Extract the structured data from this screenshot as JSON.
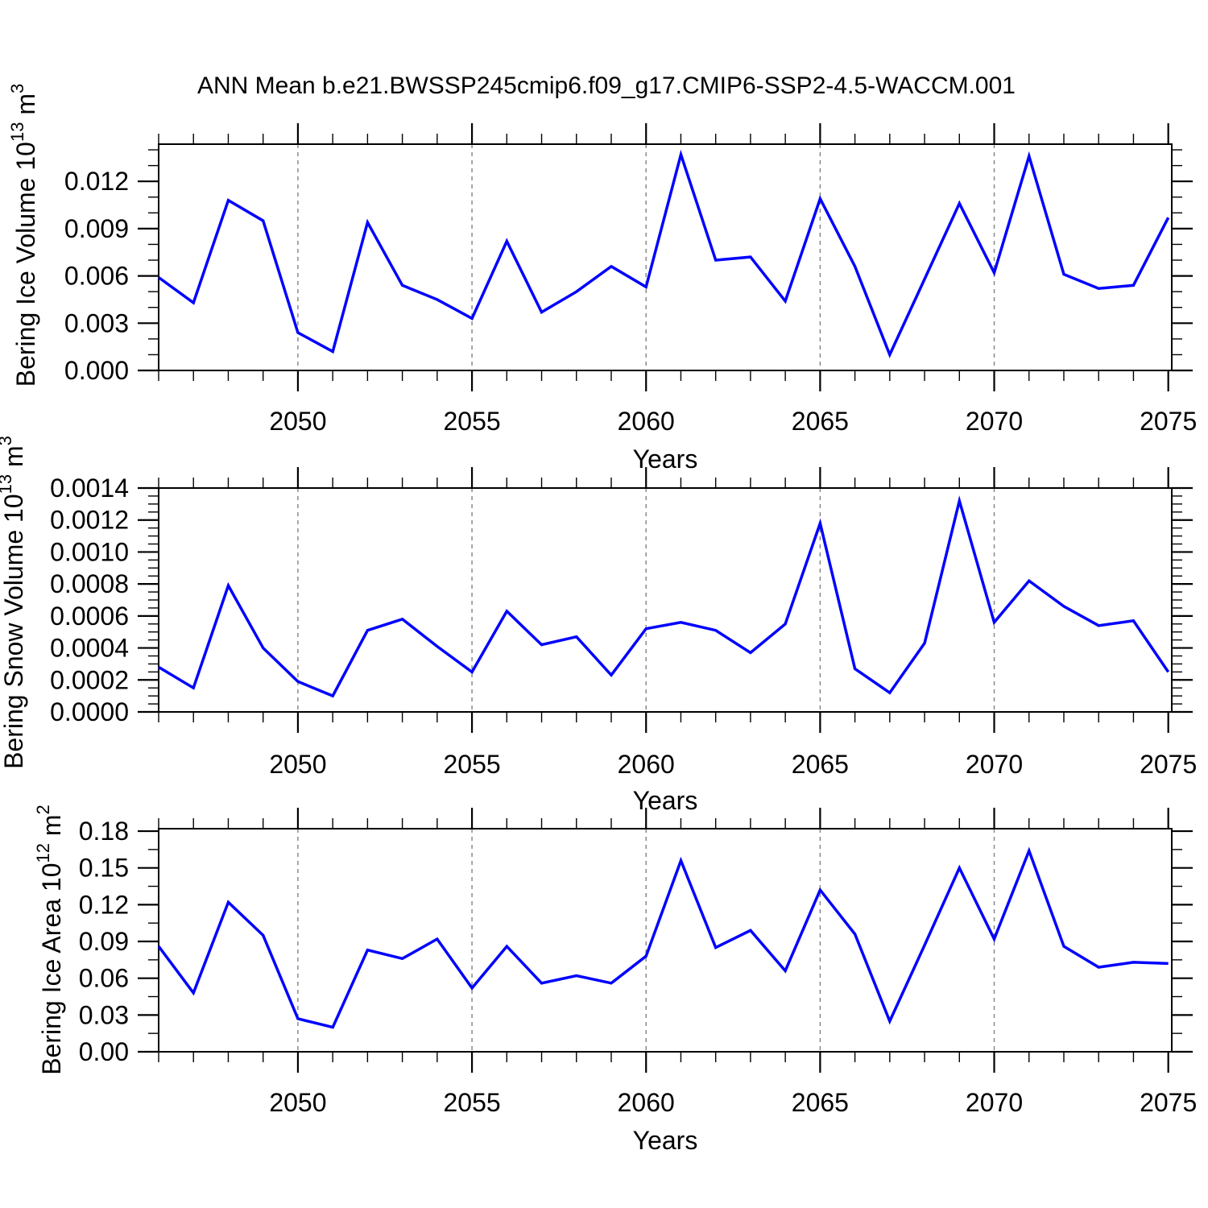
{
  "title": "ANN Mean b.e21.BWSSP245cmip6.f09_g17.CMIP6-SSP2-4.5-WACCM.001",
  "line_color": "#0000ff",
  "gridline_color": "#828282",
  "x_axis": {
    "xlabel": "Years",
    "xlim": [
      2046,
      2075.1
    ],
    "xticks": [
      2050,
      2055,
      2060,
      2065,
      2070,
      2075
    ],
    "x_minor_step": 1,
    "grid_years": [
      2050,
      2055,
      2060,
      2065,
      2070
    ]
  },
  "chart_data": [
    {
      "id": "bering-ice-volume",
      "type": "line",
      "ylabel": "Bering Ice Volume 10^13 m^3",
      "ylabel_parts": [
        {
          "t": "Bering Ice Volume 10"
        },
        {
          "sup": "13"
        },
        {
          "t": " m"
        },
        {
          "sup": "3"
        }
      ],
      "xlabel": "Years",
      "ylim": [
        0,
        0.01436
      ],
      "ytick_values": [
        0.0,
        0.003,
        0.006,
        0.009,
        0.012
      ],
      "ytick_labels": [
        "0.000",
        "0.003",
        "0.006",
        "0.009",
        "0.012"
      ],
      "y_minor_step": 0.001,
      "years": [
        2046,
        2047,
        2048,
        2049,
        2050,
        2051,
        2052,
        2053,
        2054,
        2055,
        2056,
        2057,
        2058,
        2059,
        2060,
        2061,
        2062,
        2063,
        2064,
        2065,
        2066,
        2067,
        2068,
        2069,
        2070,
        2071,
        2072,
        2073,
        2074,
        2075
      ],
      "values": [
        0.0059,
        0.0043,
        0.0108,
        0.0095,
        0.0024,
        0.0012,
        0.0094,
        0.0054,
        0.0045,
        0.0033,
        0.0082,
        0.0037,
        0.005,
        0.0066,
        0.0053,
        0.0137,
        0.007,
        0.0072,
        0.0044,
        0.0109,
        0.0066,
        0.001,
        0.0058,
        0.0106,
        0.0062,
        0.0136,
        0.0061,
        0.0052,
        0.0054,
        0.0097
      ]
    },
    {
      "id": "bering-snow-volume",
      "type": "line",
      "ylabel": "Bering Snow Volume 10^13 m^3",
      "ylabel_parts": [
        {
          "t": "Bering Snow Volume 10"
        },
        {
          "sup": "13"
        },
        {
          "t": " m"
        },
        {
          "sup": "3"
        }
      ],
      "xlabel": "Years",
      "ylim": [
        0,
        0.0014
      ],
      "ytick_values": [
        0.0,
        0.0002,
        0.0004,
        0.0006,
        0.0008,
        0.001,
        0.0012,
        0.0014
      ],
      "ytick_labels": [
        "0.0000",
        "0.0002",
        "0.0004",
        "0.0006",
        "0.0008",
        "0.0010",
        "0.0012",
        "0.0014"
      ],
      "y_minor_step": 5e-05,
      "years": [
        2046,
        2047,
        2048,
        2049,
        2050,
        2051,
        2052,
        2053,
        2054,
        2055,
        2056,
        2057,
        2058,
        2059,
        2060,
        2061,
        2062,
        2063,
        2064,
        2065,
        2066,
        2067,
        2068,
        2069,
        2070,
        2071,
        2072,
        2073,
        2074,
        2075
      ],
      "values": [
        0.00028,
        0.00015,
        0.00079,
        0.0004,
        0.00019,
        0.0001,
        0.00051,
        0.00058,
        0.00041,
        0.00025,
        0.00063,
        0.00042,
        0.00047,
        0.00023,
        0.00052,
        0.00056,
        0.00051,
        0.00037,
        0.00055,
        0.00118,
        0.00027,
        0.00012,
        0.00043,
        0.00132,
        0.00056,
        0.00082,
        0.00066,
        0.00054,
        0.00057,
        0.00025
      ]
    },
    {
      "id": "bering-ice-area",
      "type": "line",
      "ylabel": "Bering Ice Area 10^12 m^2",
      "ylabel_parts": [
        {
          "t": "Bering Ice Area 10"
        },
        {
          "sup": "12"
        },
        {
          "t": " m"
        },
        {
          "sup": "2"
        }
      ],
      "xlabel": "Years",
      "ylim": [
        0,
        0.182
      ],
      "ytick_values": [
        0.0,
        0.03,
        0.06,
        0.09,
        0.12,
        0.15,
        0.18
      ],
      "ytick_labels": [
        "0.00",
        "0.03",
        "0.06",
        "0.09",
        "0.12",
        "0.15",
        "0.18"
      ],
      "y_minor_step": 0.015,
      "years": [
        2046,
        2047,
        2048,
        2049,
        2050,
        2051,
        2052,
        2053,
        2054,
        2055,
        2056,
        2057,
        2058,
        2059,
        2060,
        2061,
        2062,
        2063,
        2064,
        2065,
        2066,
        2067,
        2068,
        2069,
        2070,
        2071,
        2072,
        2073,
        2074,
        2075
      ],
      "values": [
        0.086,
        0.048,
        0.122,
        0.095,
        0.027,
        0.02,
        0.083,
        0.076,
        0.092,
        0.052,
        0.086,
        0.056,
        0.062,
        0.056,
        0.078,
        0.156,
        0.085,
        0.099,
        0.066,
        0.132,
        0.096,
        0.025,
        0.087,
        0.15,
        0.092,
        0.164,
        0.086,
        0.069,
        0.073,
        0.072
      ]
    }
  ]
}
